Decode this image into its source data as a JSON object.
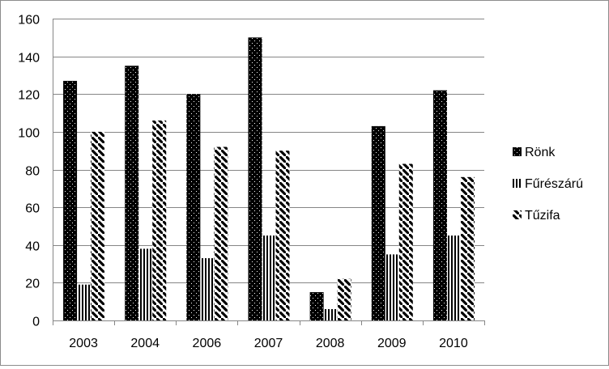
{
  "chart_data": {
    "type": "bar",
    "title": "",
    "xlabel": "",
    "ylabel": "",
    "categories": [
      "2003",
      "2004",
      "2006",
      "2007",
      "2008",
      "2009",
      "2010"
    ],
    "series": [
      {
        "name": "Rönk",
        "values": [
          127,
          135,
          120,
          150,
          15,
          103,
          122
        ],
        "pattern": "dotted-black"
      },
      {
        "name": "Fűrészárú",
        "values": [
          19,
          38,
          33,
          45,
          6,
          35,
          45
        ],
        "pattern": "vertical-stripes"
      },
      {
        "name": "Tűzifa",
        "values": [
          100,
          106,
          92,
          90,
          22,
          83,
          76
        ],
        "pattern": "diagonal-stripes"
      }
    ],
    "ylim": [
      0,
      160
    ],
    "yticks": [
      0,
      20,
      40,
      60,
      80,
      100,
      120,
      140,
      160
    ],
    "grid": true,
    "legend": "right",
    "colors": {
      "bar": "#000000",
      "grid": "#868686",
      "axis": "#868686",
      "border": "#8c8c8c"
    }
  }
}
